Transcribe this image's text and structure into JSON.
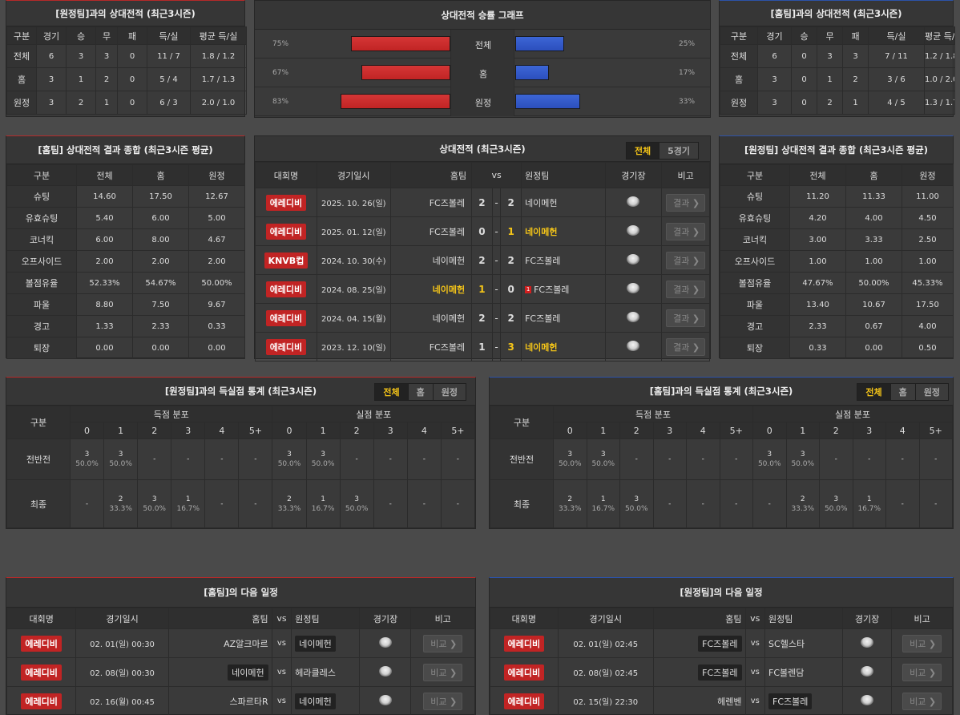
{
  "h2h_away": {
    "title": "[원정팀]과의 상대전적 (최근3시즌)",
    "headers": [
      "구분",
      "경기",
      "승",
      "무",
      "패",
      "득/실",
      "평균 득/실"
    ],
    "rows": [
      [
        "전체",
        "6",
        "3",
        "3",
        "0",
        "11 / 7",
        "1.8 / 1.2"
      ],
      [
        "홈",
        "3",
        "1",
        "2",
        "0",
        "5 / 4",
        "1.7 / 1.3"
      ],
      [
        "원정",
        "3",
        "2",
        "1",
        "0",
        "6 / 3",
        "2.0 / 1.0"
      ]
    ]
  },
  "h2h_home": {
    "title": "[홈팀]과의 상대전적 (최근3시즌)",
    "headers": [
      "구분",
      "경기",
      "승",
      "무",
      "패",
      "득/실",
      "평균 득/실"
    ],
    "rows": [
      [
        "전체",
        "6",
        "0",
        "3",
        "3",
        "7 / 11",
        "1.2 / 1.8"
      ],
      [
        "홈",
        "3",
        "0",
        "1",
        "2",
        "3 / 6",
        "1.0 / 2.0"
      ],
      [
        "원정",
        "3",
        "0",
        "2",
        "1",
        "4 / 5",
        "1.3 / 1.7"
      ]
    ]
  },
  "graph": {
    "title": "상대전적 승률 그래프",
    "rows": [
      {
        "label": "전체",
        "left": "75%",
        "right": "25%",
        "lv": 75,
        "rv": 25
      },
      {
        "label": "홈",
        "left": "67%",
        "right": "17%",
        "lv": 67,
        "rv": 17
      },
      {
        "label": "원정",
        "left": "83%",
        "right": "33%",
        "lv": 83,
        "rv": 33
      }
    ],
    "colors": {
      "home": "#c12424",
      "away": "#2c4fbd"
    }
  },
  "summary_home": {
    "title": "[홈팀] 상대전적 결과 종합 (최근3시즌 평균)",
    "headers": [
      "구분",
      "전체",
      "홈",
      "원정"
    ],
    "rows": [
      [
        "슈팅",
        "14.60",
        "17.50",
        "12.67"
      ],
      [
        "유효슈팅",
        "5.40",
        "6.00",
        "5.00"
      ],
      [
        "코너킥",
        "6.00",
        "8.00",
        "4.67"
      ],
      [
        "오프사이드",
        "2.00",
        "2.00",
        "2.00"
      ],
      [
        "볼점유율",
        "52.33%",
        "54.67%",
        "50.00%"
      ],
      [
        "파울",
        "8.80",
        "7.50",
        "9.67"
      ],
      [
        "경고",
        "1.33",
        "2.33",
        "0.33"
      ],
      [
        "퇴장",
        "0.00",
        "0.00",
        "0.00"
      ]
    ]
  },
  "summary_away": {
    "title": "[원정팀] 상대전적 결과 종합 (최근3시즌 평균)",
    "headers": [
      "구분",
      "전체",
      "홈",
      "원정"
    ],
    "rows": [
      [
        "슈팅",
        "11.20",
        "11.33",
        "11.00"
      ],
      [
        "유효슈팅",
        "4.20",
        "4.00",
        "4.50"
      ],
      [
        "코너킥",
        "3.00",
        "3.33",
        "2.50"
      ],
      [
        "오프사이드",
        "1.00",
        "1.00",
        "1.00"
      ],
      [
        "볼점유율",
        "47.67%",
        "50.00%",
        "45.33%"
      ],
      [
        "파울",
        "13.40",
        "10.67",
        "17.50"
      ],
      [
        "경고",
        "2.33",
        "0.67",
        "4.00"
      ],
      [
        "퇴장",
        "0.33",
        "0.00",
        "0.50"
      ]
    ]
  },
  "matches": {
    "title": "상대전적 (최근3시즌)",
    "tabs": [
      "전체",
      "5경기"
    ],
    "headers": {
      "league": "대회명",
      "date": "경기일시",
      "home": "홈팀",
      "vs": "vs",
      "away": "원정팀",
      "venue": "경기장",
      "note": "비고"
    },
    "result_label": "결과 ❯",
    "rows": [
      {
        "league": "에레디비",
        "date": "2025. 10. 26(일)",
        "home": "FC즈볼레",
        "hs": "2",
        "as": "2",
        "away": "네이메헌",
        "win": "none",
        "card": ""
      },
      {
        "league": "에레디비",
        "date": "2025. 01. 12(일)",
        "home": "FC즈볼레",
        "hs": "0",
        "as": "1",
        "away": "네이메헌",
        "win": "away",
        "card": ""
      },
      {
        "league": "KNVB컵",
        "date": "2024. 10. 30(수)",
        "home": "네이메헌",
        "hs": "2",
        "as": "2",
        "away": "FC즈볼레",
        "win": "none",
        "card": ""
      },
      {
        "league": "에레디비",
        "date": "2024. 08. 25(일)",
        "home": "네이메헌",
        "hs": "1",
        "as": "0",
        "away": "FC즈볼레",
        "win": "home",
        "card": "1"
      },
      {
        "league": "에레디비",
        "date": "2024. 04. 15(월)",
        "home": "네이메헌",
        "hs": "2",
        "as": "2",
        "away": "FC즈볼레",
        "win": "none",
        "card": ""
      },
      {
        "league": "에레디비",
        "date": "2023. 12. 10(일)",
        "home": "FC즈볼레",
        "hs": "1",
        "as": "3",
        "away": "네이메헌",
        "win": "away",
        "card": ""
      }
    ]
  },
  "goals_away": {
    "title": "[원정팀]과의 득실점 통계 (최근3시즌)",
    "tabs": [
      "전체",
      "홈",
      "원정"
    ],
    "label": "구분",
    "scored": "득점 분포",
    "conceded": "실점 분포",
    "cols": [
      "0",
      "1",
      "2",
      "3",
      "4",
      "5+"
    ],
    "rows": [
      {
        "label": "전반전",
        "cells": [
          [
            "3",
            "50.0%"
          ],
          [
            "3",
            "50.0%"
          ],
          [
            "-",
            ""
          ],
          [
            "-",
            ""
          ],
          [
            "-",
            ""
          ],
          [
            "-",
            ""
          ],
          [
            "3",
            "50.0%"
          ],
          [
            "3",
            "50.0%"
          ],
          [
            "-",
            ""
          ],
          [
            "-",
            ""
          ],
          [
            "-",
            ""
          ],
          [
            "-",
            ""
          ]
        ]
      },
      {
        "label": "최종",
        "cells": [
          [
            "-",
            ""
          ],
          [
            "2",
            "33.3%"
          ],
          [
            "3",
            "50.0%"
          ],
          [
            "1",
            "16.7%"
          ],
          [
            "-",
            ""
          ],
          [
            "-",
            ""
          ],
          [
            "2",
            "33.3%"
          ],
          [
            "1",
            "16.7%"
          ],
          [
            "3",
            "50.0%"
          ],
          [
            "-",
            ""
          ],
          [
            "-",
            ""
          ],
          [
            "-",
            ""
          ]
        ]
      }
    ]
  },
  "goals_home": {
    "title": "[홈팀]과의 득실점 통계 (최근3시즌)",
    "tabs": [
      "전체",
      "홈",
      "원정"
    ],
    "label": "구분",
    "scored": "득점 분포",
    "conceded": "실점 분포",
    "cols": [
      "0",
      "1",
      "2",
      "3",
      "4",
      "5+"
    ],
    "rows": [
      {
        "label": "전반전",
        "cells": [
          [
            "3",
            "50.0%"
          ],
          [
            "3",
            "50.0%"
          ],
          [
            "-",
            ""
          ],
          [
            "-",
            ""
          ],
          [
            "-",
            ""
          ],
          [
            "-",
            ""
          ],
          [
            "3",
            "50.0%"
          ],
          [
            "3",
            "50.0%"
          ],
          [
            "-",
            ""
          ],
          [
            "-",
            ""
          ],
          [
            "-",
            ""
          ],
          [
            "-",
            ""
          ]
        ]
      },
      {
        "label": "최종",
        "cells": [
          [
            "2",
            "33.3%"
          ],
          [
            "1",
            "16.7%"
          ],
          [
            "3",
            "50.0%"
          ],
          [
            "-",
            ""
          ],
          [
            "-",
            ""
          ],
          [
            "-",
            ""
          ],
          [
            "-",
            ""
          ],
          [
            "2",
            "33.3%"
          ],
          [
            "3",
            "50.0%"
          ],
          [
            "1",
            "16.7%"
          ],
          [
            "-",
            ""
          ],
          [
            "-",
            ""
          ]
        ]
      }
    ]
  },
  "next_home": {
    "title": "[홈팀]의 다음 일정",
    "headers": {
      "league": "대회명",
      "date": "경기일시",
      "home": "홈팀",
      "vs": "vs",
      "away": "원정팀",
      "venue": "경기장",
      "note": "비고"
    },
    "compare_label": "비교 ❯",
    "rows": [
      {
        "league": "에레디비",
        "date": "02. 01(일) 00:30",
        "home": "AZ알크마르",
        "away": "네이메헌",
        "box": "away"
      },
      {
        "league": "에레디비",
        "date": "02. 08(일) 00:30",
        "home": "네이메헌",
        "away": "헤라클레스",
        "box": "home"
      },
      {
        "league": "에레디비",
        "date": "02. 16(월) 00:45",
        "home": "스파르타R",
        "away": "네이메헌",
        "box": "away"
      }
    ]
  },
  "next_away": {
    "title": "[원정팀]의 다음 일정",
    "headers": {
      "league": "대회명",
      "date": "경기일시",
      "home": "홈팀",
      "vs": "vs",
      "away": "원정팀",
      "venue": "경기장",
      "note": "비고"
    },
    "compare_label": "비교 ❯",
    "rows": [
      {
        "league": "에레디비",
        "date": "02. 01(일) 02:45",
        "home": "FC즈볼레",
        "away": "SC헬스타",
        "box": "home"
      },
      {
        "league": "에레디비",
        "date": "02. 08(일) 02:45",
        "home": "FC즈볼레",
        "away": "FC볼렌담",
        "box": "home"
      },
      {
        "league": "에레디비",
        "date": "02. 15(일) 22:30",
        "home": "헤렌벤",
        "away": "FC즈볼레",
        "box": "away"
      }
    ]
  }
}
